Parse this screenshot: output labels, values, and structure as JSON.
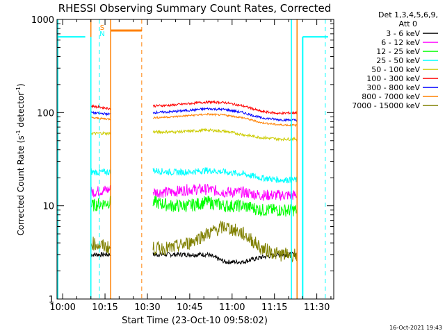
{
  "chart_data": {
    "type": "line",
    "title": "RHESSI Observing Summary Count Rates, Corrected",
    "xlabel": "Start Time (23-Oct-10 09:58:02)",
    "ylabel_main": "Corrected Count Rate (s",
    "ylabel_sup1": "-1",
    "ylabel_mid": " detector",
    "ylabel_sup2": "-1",
    "ylabel_end": ")",
    "y_scale": "log",
    "ylim": [
      1,
      1000
    ],
    "xlim": [
      "09:58",
      "11:36"
    ],
    "x_ticks": [
      "10:00",
      "10:15",
      "10:30",
      "10:45",
      "11:00",
      "11:15",
      "11:30"
    ],
    "y_ticks": [
      "1",
      "10",
      "100",
      "1000"
    ],
    "grid": false,
    "legend_header": [
      "Det 1,3,4,5,6,9,",
      "Att 0"
    ],
    "legend_placement": "right",
    "markers": [
      {
        "label": "S",
        "color": "#ff8000"
      },
      {
        "label": "N",
        "color": "#00ffff"
      }
    ],
    "footer_timestamp": "16-Oct-2021 19:43",
    "series": [
      {
        "name": "3 - 6 keV",
        "color": "#000000",
        "seg1": [
          3,
          3
        ],
        "seg2": [
          3,
          3,
          3,
          3,
          2.5,
          2.5,
          2.8,
          3,
          3
        ]
      },
      {
        "name": "6 - 12 keV",
        "color": "#ff00ff",
        "seg1": [
          14,
          15
        ],
        "seg2": [
          14,
          14,
          15,
          15,
          14,
          14,
          13,
          13,
          13
        ]
      },
      {
        "name": "12 - 25 keV",
        "color": "#00ff00",
        "seg1": [
          10,
          11
        ],
        "seg2": [
          11,
          10,
          10,
          11,
          10,
          10,
          9,
          9,
          9
        ]
      },
      {
        "name": "25 - 50 keV",
        "color": "#00ffff",
        "seg1": [
          23,
          23
        ],
        "seg2": [
          24,
          23,
          23,
          24,
          23,
          22,
          20,
          19,
          19
        ]
      },
      {
        "name": "50 - 100 keV",
        "color": "#cccc00",
        "seg1": [
          60,
          60
        ],
        "seg2": [
          62,
          62,
          63,
          65,
          63,
          58,
          54,
          52,
          52
        ]
      },
      {
        "name": "100 - 300 keV",
        "color": "#ff0000",
        "seg1": [
          118,
          110
        ],
        "seg2": [
          118,
          120,
          125,
          130,
          128,
          118,
          103,
          98,
          100
        ]
      },
      {
        "name": "300 - 800 keV",
        "color": "#0000ff",
        "seg1": [
          100,
          96
        ],
        "seg2": [
          100,
          102,
          106,
          110,
          108,
          100,
          88,
          84,
          83
        ]
      },
      {
        "name": "800 - 7000 keV",
        "color": "#ff8000",
        "seg1": [
          88,
          85
        ],
        "seg2": [
          88,
          90,
          93,
          96,
          94,
          88,
          78,
          74,
          73
        ]
      },
      {
        "name": "7000 - 15000 keV",
        "color": "#808000",
        "seg1": [
          4,
          3.5
        ],
        "seg2": [
          3.5,
          3.5,
          4,
          5,
          6,
          5,
          3.5,
          3,
          3
        ]
      }
    ],
    "seg1_time": [
      "10:10",
      "10:17"
    ],
    "seg2_time": [
      "10:32",
      "11:23"
    ],
    "attenuator_high_level": 650
  }
}
